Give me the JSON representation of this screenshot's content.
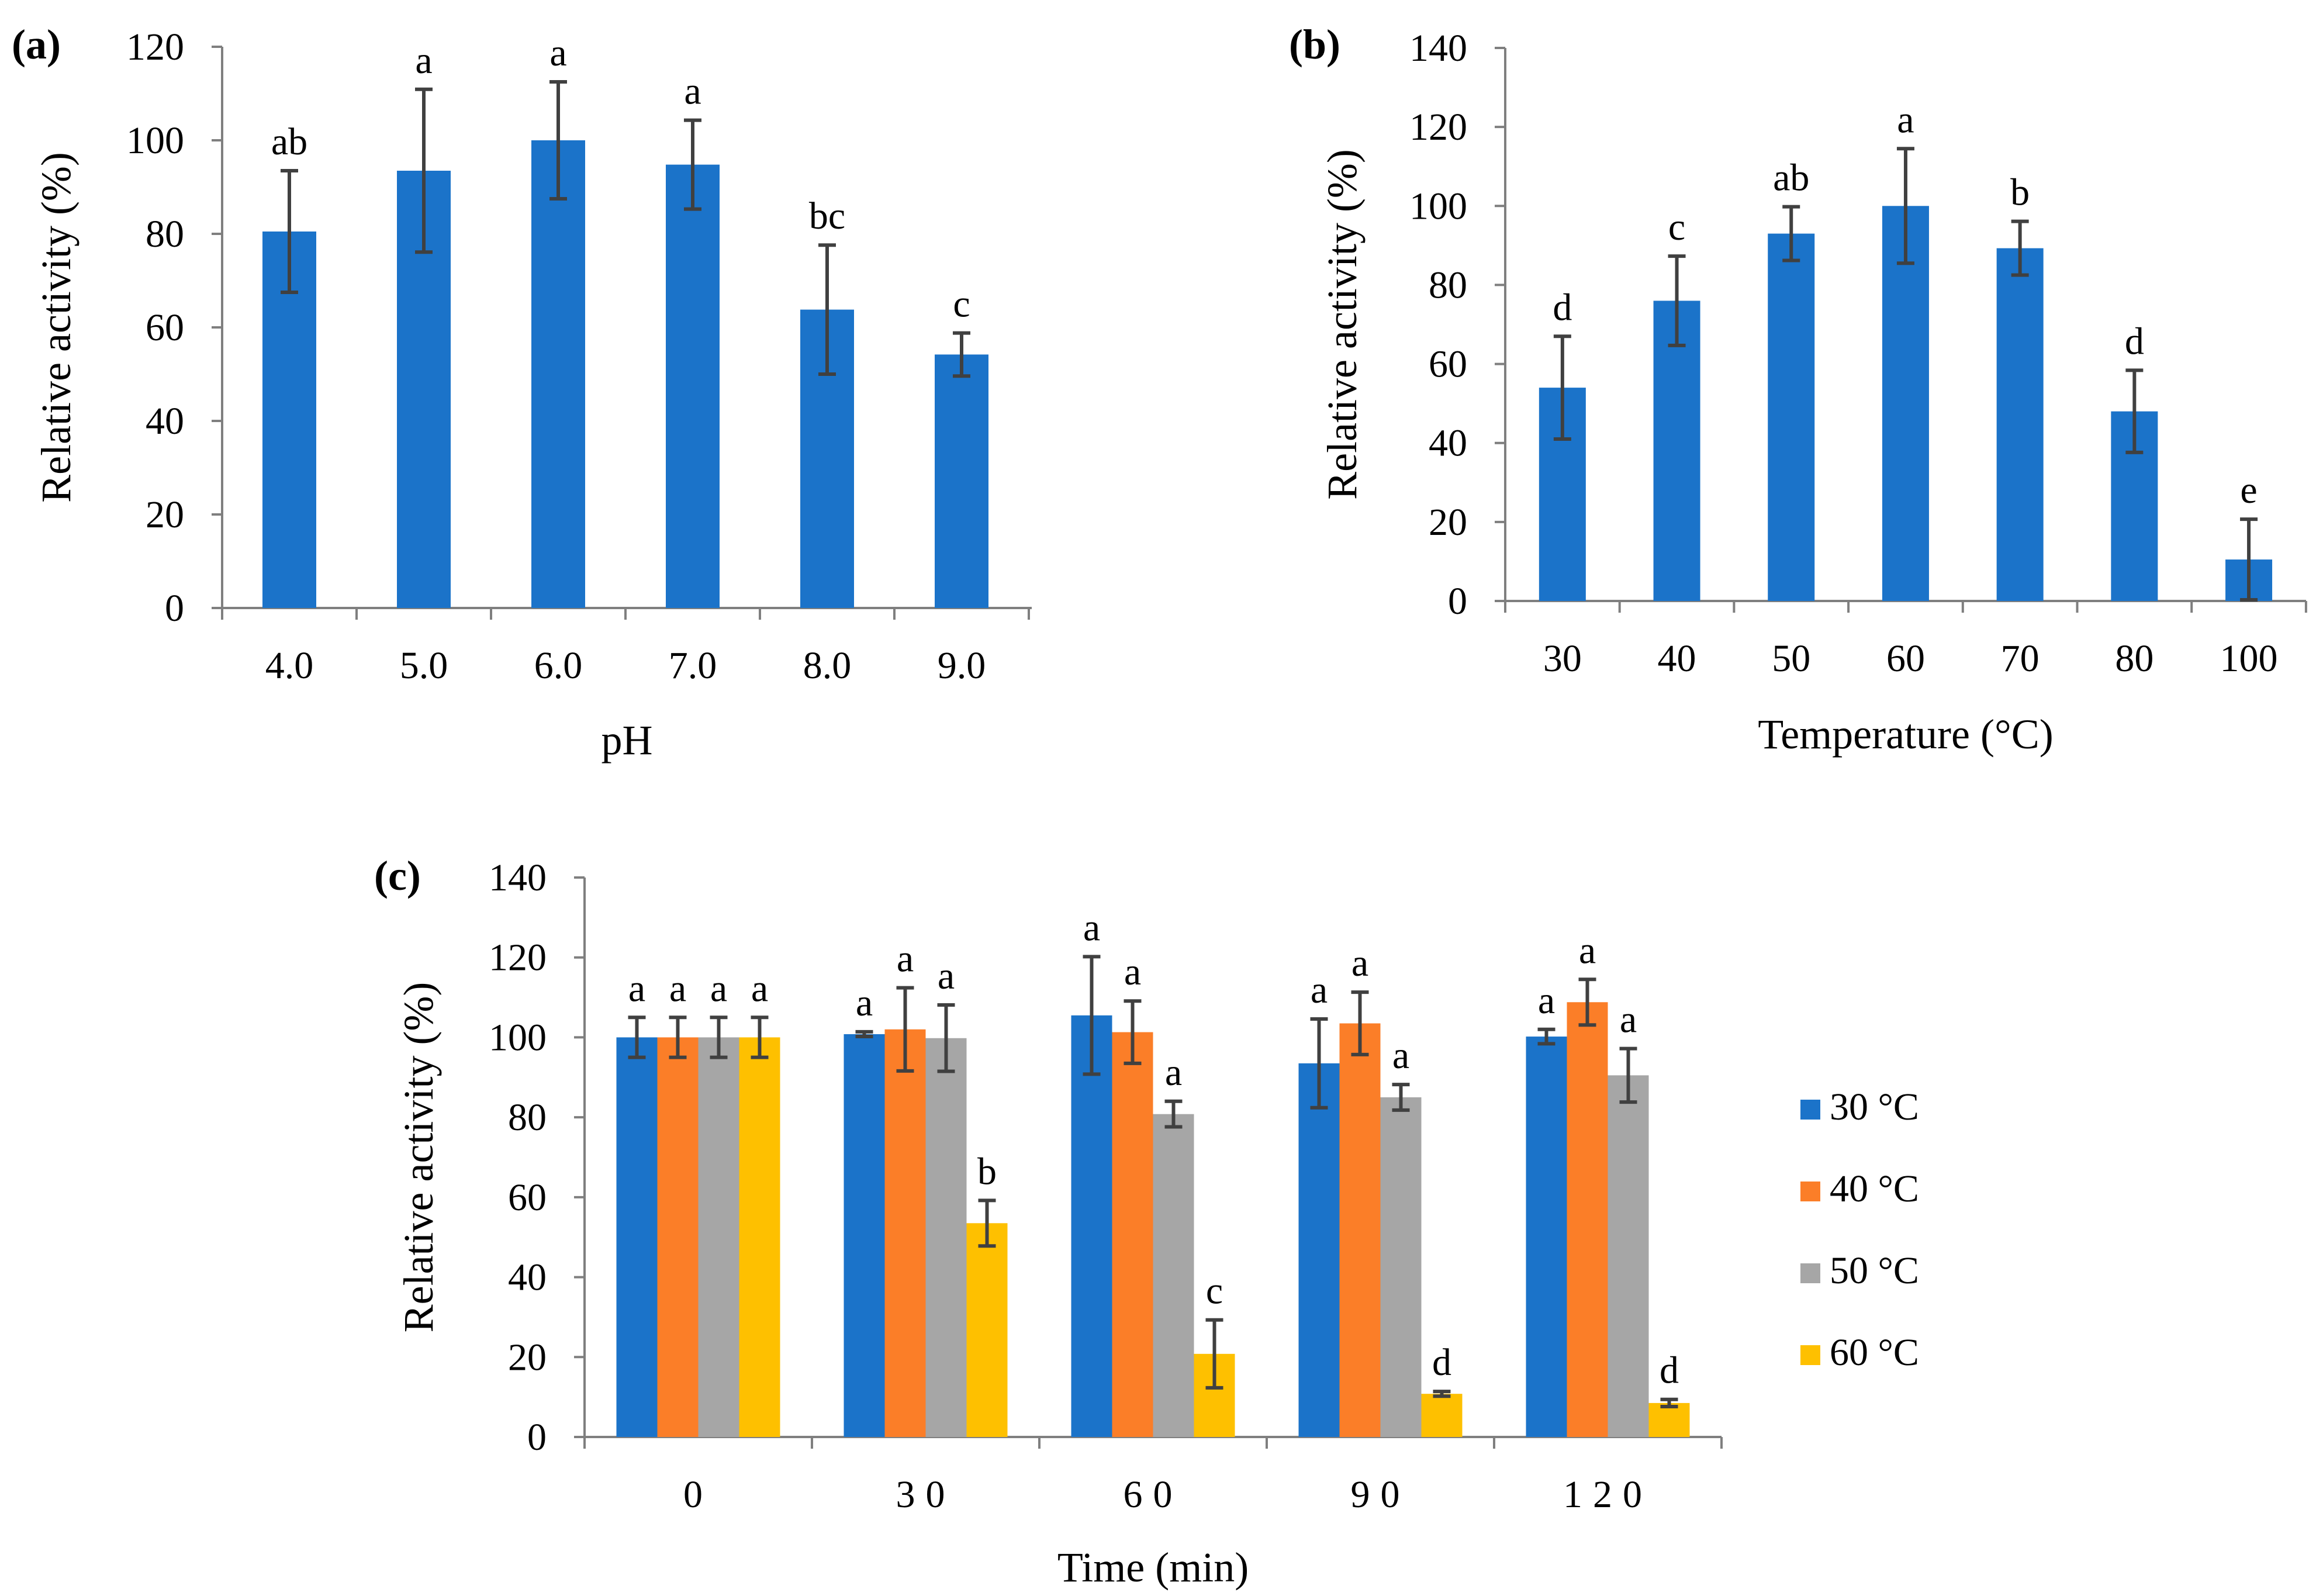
{
  "colors": {
    "blue": "#1b73c9",
    "orange": "#fb7e28",
    "gray": "#a6a6a6",
    "yellow": "#fec000"
  },
  "chart_data": [
    {
      "panel_label": "(a)",
      "type": "bar",
      "xlabel": "pH",
      "ylabel": "Relative activity (%)",
      "ylim": [
        0,
        120
      ],
      "yticks": [
        "0",
        "20",
        "40",
        "60",
        "80",
        "100",
        "120"
      ],
      "categories": [
        "4.0",
        "5.0",
        "6.0",
        "7.0",
        "8.0",
        "9.0"
      ],
      "series": [
        {
          "name": "",
          "color": "#1b73c9",
          "values": [
            80.5,
            93.5,
            100,
            94.8,
            63.8,
            54.2
          ],
          "errors": [
            13,
            17.4,
            12.5,
            9.5,
            13.8,
            4.6
          ],
          "letters": [
            "ab",
            "a",
            "a",
            "a",
            "bc",
            "c"
          ]
        }
      ]
    },
    {
      "panel_label": "(b)",
      "type": "bar",
      "xlabel": "Temperature (°C)",
      "ylabel": "Relative activity (%)",
      "ylim": [
        0,
        140
      ],
      "yticks": [
        "0",
        "20",
        "40",
        "60",
        "80",
        "100",
        "120",
        "140"
      ],
      "categories": [
        "30",
        "40",
        "50",
        "60",
        "70",
        "80",
        "100"
      ],
      "series": [
        {
          "name": "",
          "color": "#1b73c9",
          "values": [
            54,
            76,
            93,
            100,
            89.3,
            48,
            10.5
          ],
          "errors": [
            13,
            11.3,
            6.8,
            14.5,
            6.8,
            10.4,
            10.2
          ],
          "letters": [
            "d",
            "c",
            "ab",
            "a",
            "b",
            "d",
            "e"
          ]
        }
      ]
    },
    {
      "panel_label": "(c)",
      "type": "bar",
      "xlabel": "Time (min)",
      "ylabel": "Relative activity (%)",
      "ylim": [
        0,
        140
      ],
      "yticks": [
        "0",
        "20",
        "40",
        "60",
        "80",
        "100",
        "120",
        "140"
      ],
      "categories": [
        "0",
        "30",
        "60",
        "90",
        "120"
      ],
      "legend_position": "right",
      "series": [
        {
          "name": "30 °C",
          "color": "#1b73c9",
          "values": [
            100,
            100.8,
            105.5,
            93.5,
            100.2
          ],
          "errors": [
            5,
            0.6,
            14.7,
            11.1,
            1.8
          ],
          "letters": [
            "a",
            "a",
            "a",
            "a",
            "a"
          ]
        },
        {
          "name": "40 °C",
          "color": "#fb7e28",
          "values": [
            100,
            102,
            101.3,
            103.5,
            108.8
          ],
          "errors": [
            5,
            10.4,
            7.8,
            7.8,
            5.7
          ],
          "letters": [
            "a",
            "a",
            "a",
            "a",
            "a"
          ]
        },
        {
          "name": "50 °C",
          "color": "#a6a6a6",
          "values": [
            100,
            99.8,
            80.8,
            85,
            90.5
          ],
          "errors": [
            5,
            8.3,
            3.2,
            3.2,
            6.7
          ],
          "letters": [
            "a",
            "a",
            "a",
            "a",
            "a"
          ]
        },
        {
          "name": "60 °C",
          "color": "#fec000",
          "values": [
            100,
            53.5,
            20.8,
            10.8,
            8.5
          ],
          "errors": [
            5,
            5.7,
            8.5,
            0.6,
            0.9
          ],
          "letters": [
            "a",
            "b",
            "c",
            "d",
            "d"
          ]
        }
      ]
    }
  ]
}
